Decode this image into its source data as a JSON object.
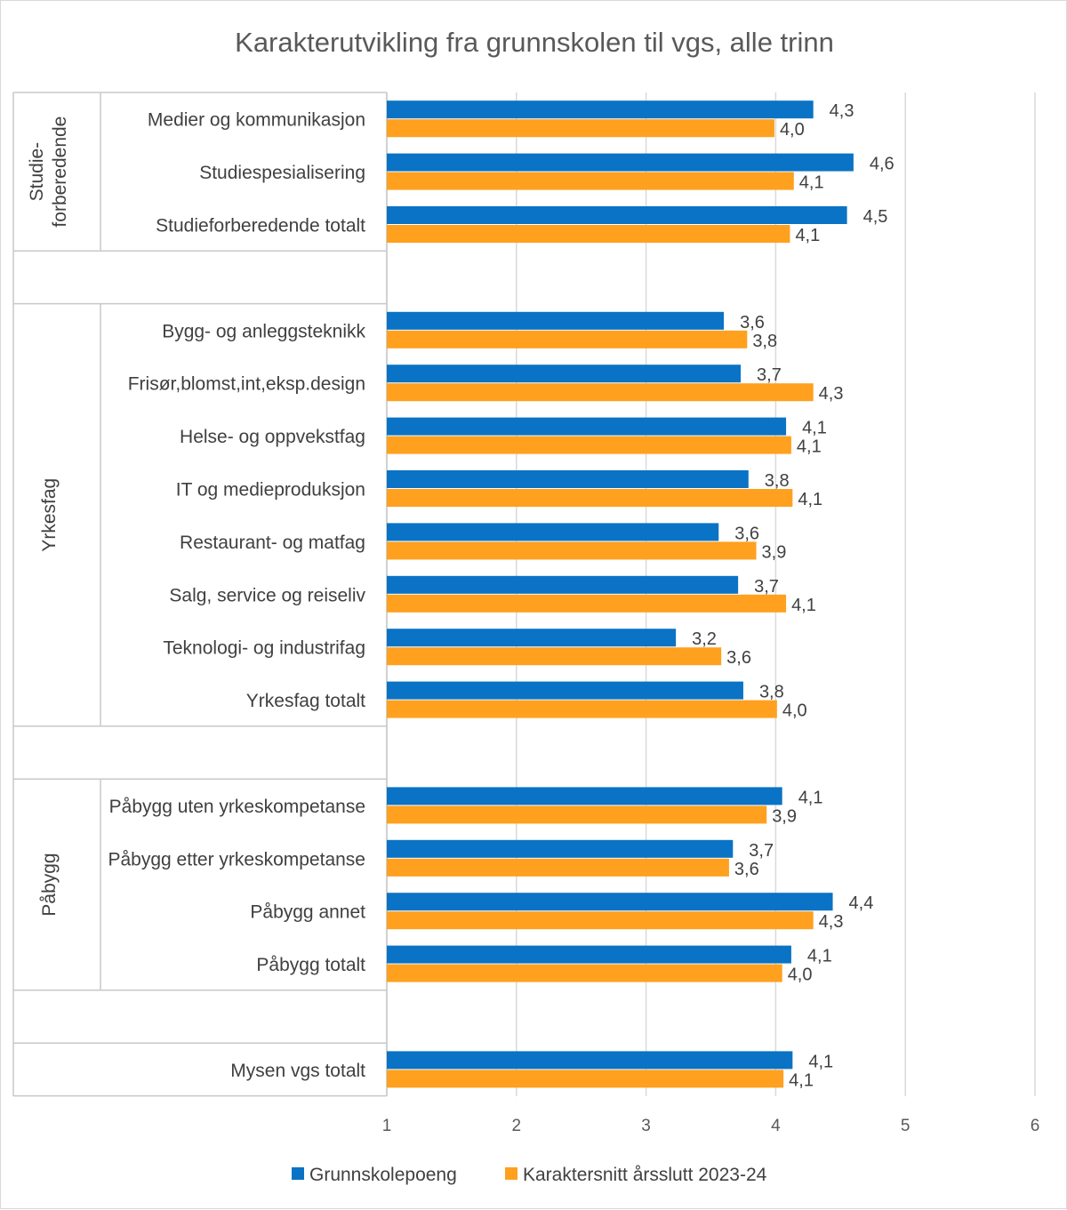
{
  "chart_data": {
    "type": "bar",
    "orientation": "horizontal",
    "title": "Karakterutvikling fra grunnskolen til vgs, alle trinn",
    "xlim": [
      1,
      6
    ],
    "xticks": [
      "1",
      "2",
      "3",
      "4",
      "5",
      "6"
    ],
    "grid": true,
    "legend_position": "bottom",
    "series": [
      {
        "name": "Grunnskolepoeng",
        "color": "#0a73c5"
      },
      {
        "name": "Karaktersnitt årsslutt 2023-24",
        "color": "#ffa01e"
      }
    ],
    "groups": [
      {
        "label": "Studie-forberedende",
        "label_lines": [
          "Studie-",
          "forberedende"
        ],
        "categories": [
          {
            "name": "Medier og kommunikasjon",
            "values": [
              4.29,
              3.99
            ],
            "labels": [
              "4,3",
              "4,0"
            ]
          },
          {
            "name": "Studiespesialisering",
            "values": [
              4.6,
              4.14
            ],
            "labels": [
              "4,6",
              "4,1"
            ]
          },
          {
            "name": "Studieforberedende totalt",
            "values": [
              4.55,
              4.11
            ],
            "labels": [
              "4,5",
              "4,1"
            ]
          }
        ]
      },
      {
        "label": "Yrkesfag",
        "label_lines": [
          "Yrkesfag"
        ],
        "categories": [
          {
            "name": "Bygg- og anleggsteknikk",
            "values": [
              3.6,
              3.78
            ],
            "labels": [
              "3,6",
              "3,8"
            ]
          },
          {
            "name": "Frisør,blomst,int,eksp.design",
            "values": [
              3.73,
              4.29
            ],
            "labels": [
              "3,7",
              "4,3"
            ]
          },
          {
            "name": "Helse- og oppvekstfag",
            "values": [
              4.08,
              4.12
            ],
            "labels": [
              "4,1",
              "4,1"
            ]
          },
          {
            "name": "IT og medieproduksjon",
            "values": [
              3.79,
              4.13
            ],
            "labels": [
              "3,8",
              "4,1"
            ]
          },
          {
            "name": "Restaurant- og matfag",
            "values": [
              3.56,
              3.85
            ],
            "labels": [
              "3,6",
              "3,9"
            ]
          },
          {
            "name": "Salg, service og reiseliv",
            "values": [
              3.71,
              4.08
            ],
            "labels": [
              "3,7",
              "4,1"
            ]
          },
          {
            "name": "Teknologi- og industrifag",
            "values": [
              3.23,
              3.58
            ],
            "labels": [
              "3,2",
              "3,6"
            ]
          },
          {
            "name": "Yrkesfag totalt",
            "values": [
              3.75,
              4.01
            ],
            "labels": [
              "3,8",
              "4,0"
            ]
          }
        ]
      },
      {
        "label": "Påbygg",
        "label_lines": [
          "Påbygg"
        ],
        "categories": [
          {
            "name": "Påbygg uten yrkeskompetanse",
            "values": [
              4.05,
              3.93
            ],
            "labels": [
              "4,1",
              "3,9"
            ]
          },
          {
            "name": "Påbygg etter yrkeskompetanse",
            "values": [
              3.67,
              3.64
            ],
            "labels": [
              "3,7",
              "3,6"
            ]
          },
          {
            "name": "Påbygg annet",
            "values": [
              4.44,
              4.29
            ],
            "labels": [
              "4,4",
              "4,3"
            ]
          },
          {
            "name": "Påbygg totalt",
            "values": [
              4.12,
              4.05
            ],
            "labels": [
              "4,1",
              "4,0"
            ]
          }
        ]
      },
      {
        "label": "",
        "label_lines": [],
        "categories": [
          {
            "name": "Mysen vgs totalt",
            "values": [
              4.13,
              4.06
            ],
            "labels": [
              "4,1",
              "4,1"
            ]
          }
        ]
      }
    ]
  }
}
